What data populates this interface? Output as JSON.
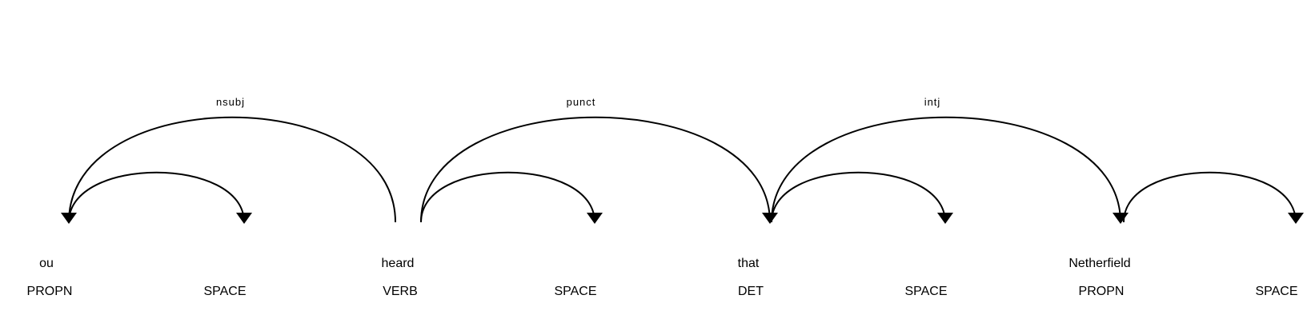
{
  "tokens": [
    {
      "text": "ou",
      "tag": "PROPN"
    },
    {
      "text": "",
      "tag": "SPACE"
    },
    {
      "text": "heard",
      "tag": "VERB"
    },
    {
      "text": "",
      "tag": "SPACE"
    },
    {
      "text": "that",
      "tag": "DET"
    },
    {
      "text": "",
      "tag": "SPACE"
    },
    {
      "text": "Netherfield",
      "tag": "PROPN"
    },
    {
      "text": "",
      "tag": "SPACE"
    }
  ],
  "arcs": [
    {
      "head": 2,
      "dep": 0,
      "label": "nsubj"
    },
    {
      "head": 0,
      "dep": 1,
      "label": ""
    },
    {
      "head": 2,
      "dep": 4,
      "label": "punct"
    },
    {
      "head": 2,
      "dep": 3,
      "label": ""
    },
    {
      "head": 4,
      "dep": 6,
      "label": "intj"
    },
    {
      "head": 4,
      "dep": 5,
      "label": ""
    },
    {
      "head": 6,
      "dep": 7,
      "label": ""
    }
  ],
  "colors": {
    "stroke": "#000000",
    "text": "#000000",
    "background": "#ffffff"
  }
}
